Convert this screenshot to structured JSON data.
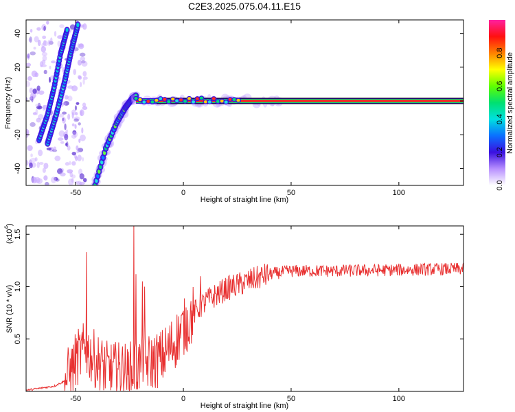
{
  "title": "C2E3.2025.075.04.11.E15",
  "chart_data": [
    {
      "type": "heatmap",
      "xlabel": "Height of straight line (km)",
      "ylabel": "Frequency (Hz)",
      "xlim": [
        -73,
        130
      ],
      "ylim": [
        -50,
        48
      ],
      "x_ticks": [
        -50,
        0,
        50,
        100
      ],
      "y_ticks": [
        -40,
        -20,
        0,
        20,
        40
      ],
      "features": [
        {
          "name": "streak",
          "x": [
            -41,
            -36,
            -31,
            -27,
            -24,
            -22
          ],
          "y": [
            -50,
            -28,
            -13,
            -4,
            1,
            3
          ]
        },
        {
          "name": "plateau",
          "x": [
            -22,
            0,
            20,
            50,
            100,
            130
          ],
          "y": [
            0,
            0,
            0,
            0,
            0,
            0
          ]
        },
        {
          "name": "ridge",
          "x": [
            -63,
            -59,
            -55,
            -52,
            -49
          ],
          "y": [
            -25,
            -8,
            12,
            30,
            45
          ]
        },
        {
          "name": "left-ridge",
          "x": [
            -67,
            -63,
            -60,
            -57,
            -54
          ],
          "y": [
            -23,
            -8,
            8,
            28,
            42
          ]
        }
      ],
      "colorbar": {
        "label": "Normalized spectral amplitude",
        "range": [
          0,
          1
        ],
        "ticks": [
          "0.0",
          "0.2",
          "0.4",
          "0.6",
          "0.8"
        ]
      }
    },
    {
      "type": "line",
      "xlabel": "Height of straight line (km)",
      "ylabel": "SNR (10 * v/v)",
      "y_scale_label": "(x10",
      "y_scale_exp": "4",
      "y_scale_close": ")",
      "xlim": [
        -73,
        130
      ],
      "ylim": [
        0,
        1.58
      ],
      "x_ticks": [
        -50,
        0,
        50,
        100
      ],
      "y_ticks": [
        "0.5",
        "1.0",
        "1.5"
      ],
      "y_tick_values": [
        0.5,
        1.0,
        1.5
      ],
      "color": "#e83030",
      "envelope_x": [
        -73,
        -60,
        -55,
        -52,
        -50,
        -48,
        -45,
        -40,
        -35,
        -30,
        -25,
        -20,
        -15,
        -10,
        -5,
        0,
        5,
        10,
        15,
        20,
        30,
        40,
        50,
        70,
        100,
        130
      ],
      "envelope_y": [
        0.01,
        0.05,
        0.1,
        0.2,
        0.3,
        0.35,
        0.4,
        0.28,
        0.2,
        0.2,
        0.2,
        0.25,
        0.28,
        0.32,
        0.45,
        0.6,
        0.75,
        0.85,
        0.92,
        0.98,
        1.05,
        1.12,
        1.15,
        1.15,
        1.16,
        1.17
      ],
      "spikes": [
        {
          "x": -45,
          "y": 1.33
        },
        {
          "x": -23,
          "y": 1.58
        },
        {
          "x": -22,
          "y": 1.12
        },
        {
          "x": -19,
          "y": 1.05
        },
        {
          "x": -18,
          "y": 1.0
        },
        {
          "x": 8,
          "y": 1.1
        }
      ]
    }
  ]
}
